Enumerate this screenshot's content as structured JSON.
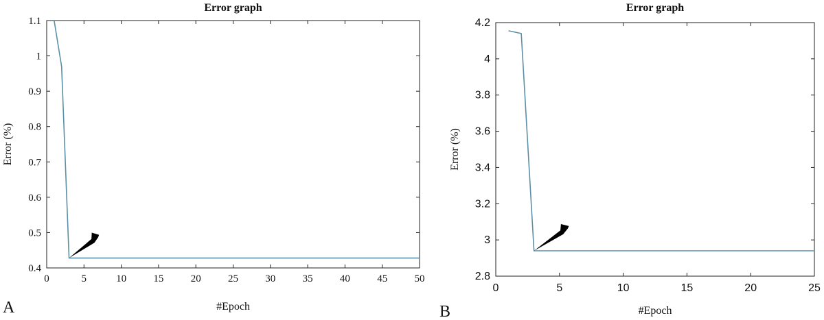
{
  "chart_data": [
    {
      "type": "line",
      "panel_label": "A",
      "title": "Error graph",
      "xlabel": "#Epoch",
      "ylabel": "Error (%)",
      "xlim": [
        0,
        50
      ],
      "ylim": [
        0.4,
        1.1
      ],
      "xticks": [
        0,
        5,
        10,
        15,
        20,
        25,
        30,
        35,
        40,
        45,
        50
      ],
      "yticks": [
        0.4,
        0.5,
        0.6,
        0.7,
        0.8,
        0.9,
        1,
        1.1
      ],
      "grid": false,
      "series": [
        {
          "x": [
            1,
            2,
            3,
            50
          ],
          "y": [
            1.1,
            0.97,
            0.428,
            0.428
          ]
        }
      ],
      "annotations": [
        {
          "type": "arrow",
          "points_to": {
            "x": 3,
            "y": 0.428
          },
          "from": {
            "x": 6.8,
            "y": 0.49
          }
        }
      ]
    },
    {
      "type": "line",
      "panel_label": "B",
      "title": "Error graph",
      "xlabel": "#Epoch",
      "ylabel": "Error (%)",
      "xlim": [
        0,
        25
      ],
      "ylim": [
        2.8,
        4.2
      ],
      "xticks": [
        0,
        5,
        10,
        15,
        20,
        25
      ],
      "yticks": [
        2.8,
        3,
        3.2,
        3.4,
        3.6,
        3.8,
        4,
        4.2
      ],
      "grid": false,
      "series": [
        {
          "x": [
            1,
            2,
            3,
            25
          ],
          "y": [
            4.155,
            4.14,
            2.94,
            2.94
          ]
        }
      ],
      "annotations": [
        {
          "type": "arrow",
          "points_to": {
            "x": 3,
            "y": 2.94
          },
          "from": {
            "x": 5.6,
            "y": 3.07
          }
        }
      ]
    }
  ]
}
